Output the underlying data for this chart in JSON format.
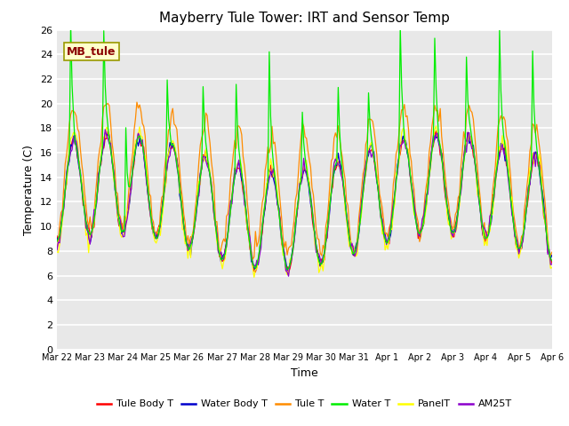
{
  "title": "Mayberry Tule Tower: IRT and Sensor Temp",
  "xlabel": "Time",
  "ylabel": "Temperature (C)",
  "ylim": [
    0,
    26
  ],
  "yticks": [
    0,
    2,
    4,
    6,
    8,
    10,
    12,
    14,
    16,
    18,
    20,
    22,
    24,
    26
  ],
  "xtick_labels": [
    "Mar 22",
    "Mar 23",
    "Mar 24",
    "Mar 25",
    "Mar 26",
    "Mar 27",
    "Mar 28",
    "Mar 29",
    "Mar 30",
    "Mar 31",
    "Apr 1",
    "Apr 2",
    "Apr 3",
    "Apr 4",
    "Apr 5",
    "Apr 6"
  ],
  "watermark_text": "MB_tule",
  "watermark_color": "#8B0000",
  "watermark_bg": "#FFFFCC",
  "watermark_edge": "#999900",
  "colors": {
    "Tule Body T": "#FF0000",
    "Water Body T": "#0000CC",
    "Tule T": "#FF8C00",
    "Water T": "#00EE00",
    "PanelT": "#FFFF00",
    "AM25T": "#8B00CC"
  },
  "legend_labels": [
    "Tule Body T",
    "Water Body T",
    "Tule T",
    "Water T",
    "PanelT",
    "AM25T"
  ],
  "fig_bg": "#FFFFFF",
  "plot_bg": "#E8E8E8",
  "grid_color": "#FFFFFF",
  "n_days": 15,
  "n_pts": 360
}
